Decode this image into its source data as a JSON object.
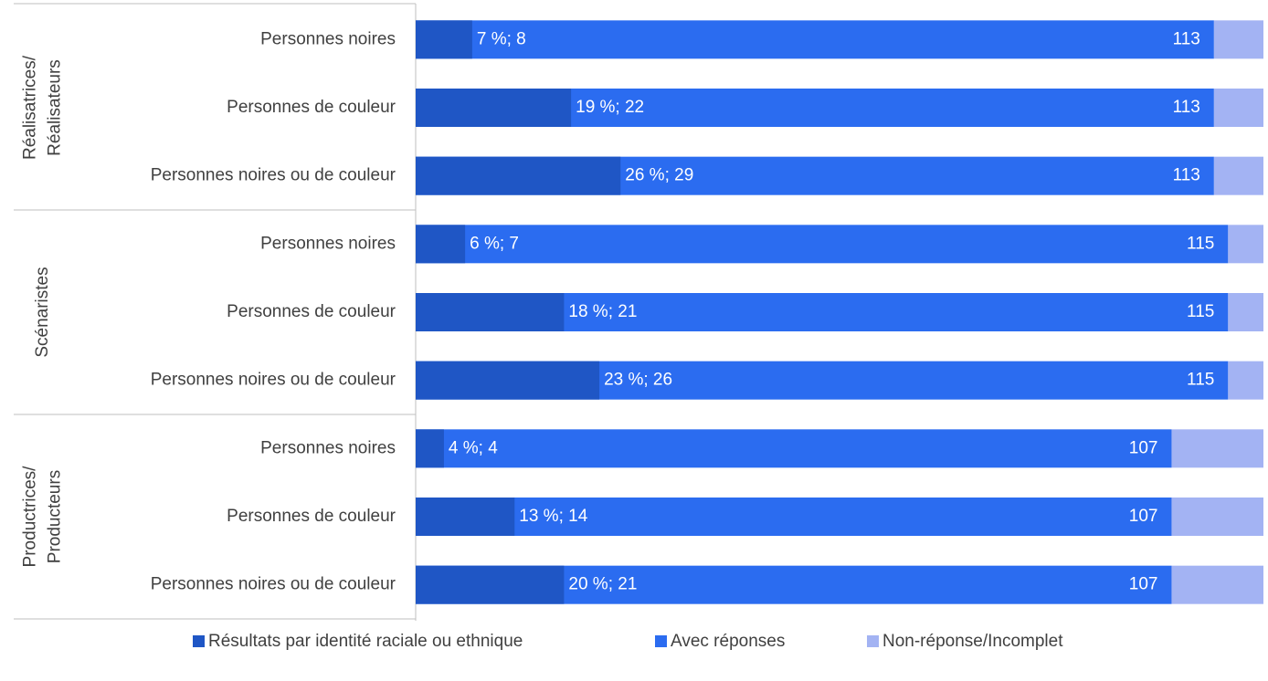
{
  "chart_data": {
    "type": "bar",
    "orientation": "horizontal",
    "groups": [
      [
        "Réalisatrices/",
        "Réalisateurs"
      ],
      [
        "Scénaristes"
      ],
      [
        "Productrices/",
        "Producteurs"
      ]
    ],
    "categories": [
      "Personnes noires",
      "Personnes de couleur",
      "Personnes noires ou de couleur",
      "Personnes noires",
      "Personnes de couleur",
      "Personnes noires ou de couleur",
      "Personnes noires",
      "Personnes de couleur",
      "Personnes noires ou de couleur"
    ],
    "series": [
      {
        "name": "Résultats par identité raciale ou ethnique",
        "color": "#1f56c5",
        "values": [
          8,
          22,
          29,
          7,
          21,
          26,
          4,
          14,
          21
        ],
        "value_labels": [
          "7 %; 8",
          "19 %; 22",
          "26 %; 29",
          "6 %; 7",
          "18 %; 21",
          "23 %; 26",
          "4 %; 4",
          "13 %; 14",
          "20 %; 21"
        ]
      },
      {
        "name": "Avec réponses",
        "color": "#2b6cf0",
        "values": [
          113,
          113,
          113,
          115,
          115,
          115,
          107,
          107,
          107
        ]
      },
      {
        "name": "Non-réponse/Incomplet",
        "color": "#a3b3f3",
        "values": [
          7,
          7,
          7,
          5,
          5,
          5,
          13,
          13,
          13
        ]
      }
    ],
    "xlim": [
      0,
      120
    ]
  }
}
